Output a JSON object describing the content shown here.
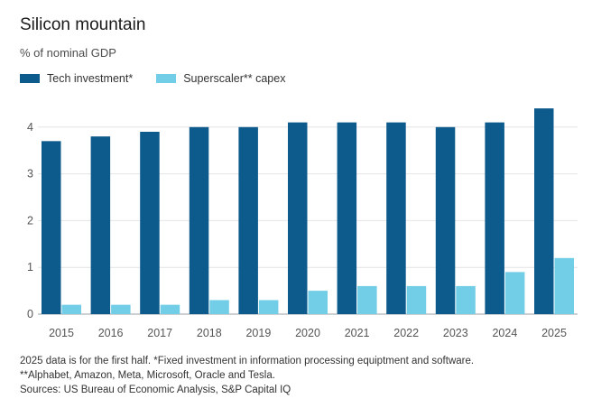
{
  "chart_data": {
    "type": "bar",
    "title": "Silicon mountain",
    "subtitle": "% of nominal GDP",
    "categories": [
      "2015",
      "2016",
      "2017",
      "2018",
      "2019",
      "2020",
      "2021",
      "2022",
      "2023",
      "2024",
      "2025"
    ],
    "series": [
      {
        "name": "Tech investment*",
        "color": "#0d5a8c",
        "values": [
          3.7,
          3.8,
          3.9,
          4.0,
          4.0,
          4.1,
          4.1,
          4.1,
          4.0,
          4.1,
          4.4
        ]
      },
      {
        "name": "Superscaler** capex",
        "color": "#72cde6",
        "values": [
          0.2,
          0.2,
          0.2,
          0.3,
          0.3,
          0.5,
          0.6,
          0.6,
          0.6,
          0.9,
          1.2
        ]
      }
    ],
    "ylim": [
      0,
      4.5
    ],
    "yticks": [
      0,
      1,
      2,
      3,
      4
    ],
    "xlabel": "",
    "ylabel": ""
  },
  "notes": [
    "2025 data is for the first half. *Fixed investment in information processing equiptment and software.",
    "**Alphabet, Amazon, Meta, Microsoft, Oracle and Tesla.",
    "Sources: US Bureau of Economic Analysis, S&P Capital IQ"
  ]
}
